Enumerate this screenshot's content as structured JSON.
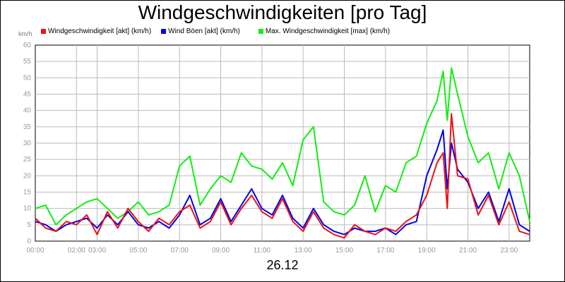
{
  "chart_data": {
    "type": "line",
    "title": "Windgeschwindigkeiten [pro Tag]",
    "ylabel": "km/h",
    "xlabel": "26.12",
    "ylim": [
      0,
      60
    ],
    "xlim_hours": [
      0,
      24
    ],
    "y_ticks": [
      "0",
      "5",
      "10",
      "15",
      "20",
      "25",
      "30",
      "35",
      "40",
      "45",
      "50",
      "55",
      "60"
    ],
    "x_ticks": [
      {
        "h": 0,
        "label": "00:00"
      },
      {
        "h": 2,
        "label": "02:00"
      },
      {
        "h": 3,
        "label": "03:00"
      },
      {
        "h": 5,
        "label": "05:00"
      },
      {
        "h": 7,
        "label": "07:00"
      },
      {
        "h": 9,
        "label": "09:00"
      },
      {
        "h": 11,
        "label": "11:00"
      },
      {
        "h": 13,
        "label": "13:00"
      },
      {
        "h": 15,
        "label": "15:00"
      },
      {
        "h": 17,
        "label": "17:00"
      },
      {
        "h": 19,
        "label": "19:00"
      },
      {
        "h": 21,
        "label": "21:00"
      },
      {
        "h": 23,
        "label": "23:00"
      }
    ],
    "grid": true,
    "legend_position": "top",
    "series": [
      {
        "name": "Windgeschwindigkeit [akt] (km/h)",
        "color": "#ee1111",
        "x": [
          0,
          0.5,
          1,
          1.5,
          2,
          2.5,
          3,
          3.5,
          4,
          4.5,
          5,
          5.5,
          6,
          6.5,
          7,
          7.5,
          8,
          8.5,
          9,
          9.5,
          10,
          10.5,
          11,
          11.5,
          12,
          12.5,
          13,
          13.5,
          14,
          14.5,
          15,
          15.5,
          16,
          16.5,
          17,
          17.5,
          18,
          18.5,
          19,
          19.5,
          19.8,
          20,
          20.2,
          20.5,
          21,
          21.5,
          22,
          22.5,
          23,
          23.5,
          24
        ],
        "y": [
          7,
          4,
          3,
          6,
          5,
          8,
          2,
          9,
          4,
          10,
          6,
          3,
          7,
          5,
          9,
          11,
          4,
          6,
          12,
          5,
          10,
          14,
          9,
          7,
          13,
          6,
          3,
          9,
          4,
          2,
          1,
          5,
          3,
          2,
          4,
          3,
          6,
          8,
          14,
          24,
          27,
          10,
          39,
          20,
          19,
          8,
          14,
          5,
          12,
          3,
          2
        ]
      },
      {
        "name": "Wind Böen [akt] (km/h)",
        "color": "#0000ee",
        "x": [
          0,
          0.5,
          1,
          1.5,
          2,
          2.5,
          3,
          3.5,
          4,
          4.5,
          5,
          5.5,
          6,
          6.5,
          7,
          7.5,
          8,
          8.5,
          9,
          9.5,
          10,
          10.5,
          11,
          11.5,
          12,
          12.5,
          13,
          13.5,
          14,
          14.5,
          15,
          15.5,
          16,
          16.5,
          17,
          17.5,
          18,
          18.5,
          19,
          19.5,
          19.8,
          20,
          20.2,
          20.5,
          21,
          21.5,
          22,
          22.5,
          23,
          23.5,
          24
        ],
        "y": [
          6,
          5,
          3,
          5,
          6,
          7,
          4,
          8,
          5,
          9,
          5,
          4,
          6,
          4,
          8,
          14,
          5,
          7,
          13,
          6,
          11,
          16,
          10,
          8,
          14,
          7,
          4,
          10,
          5,
          3,
          2,
          4,
          3,
          3,
          4,
          2,
          5,
          6,
          20,
          28,
          34,
          16,
          30,
          22,
          18,
          10,
          15,
          6,
          16,
          5,
          3
        ]
      },
      {
        "name": "Max. Windgeschwindigkeit [max] (km/h)",
        "color": "#11ee11",
        "x": [
          0,
          0.5,
          1,
          1.5,
          2,
          2.5,
          3,
          3.5,
          4,
          4.5,
          5,
          5.5,
          6,
          6.5,
          7,
          7.5,
          8,
          8.5,
          9,
          9.5,
          10,
          10.5,
          11,
          11.5,
          12,
          12.5,
          13,
          13.5,
          14,
          14.5,
          15,
          15.5,
          16,
          16.5,
          17,
          17.5,
          18,
          18.5,
          19,
          19.5,
          19.8,
          20,
          20.2,
          20.5,
          21,
          21.5,
          22,
          22.5,
          23,
          23.5,
          24
        ],
        "y": [
          10,
          11,
          5,
          8,
          10,
          12,
          13,
          10,
          7,
          9,
          12,
          8,
          9,
          11,
          23,
          26,
          11,
          16,
          20,
          18,
          27,
          23,
          22,
          19,
          24,
          17,
          31,
          35,
          12,
          9,
          8,
          11,
          20,
          9,
          17,
          15,
          24,
          26,
          36,
          43,
          52,
          37,
          53,
          45,
          32,
          24,
          27,
          16,
          27,
          20,
          6
        ]
      }
    ]
  }
}
